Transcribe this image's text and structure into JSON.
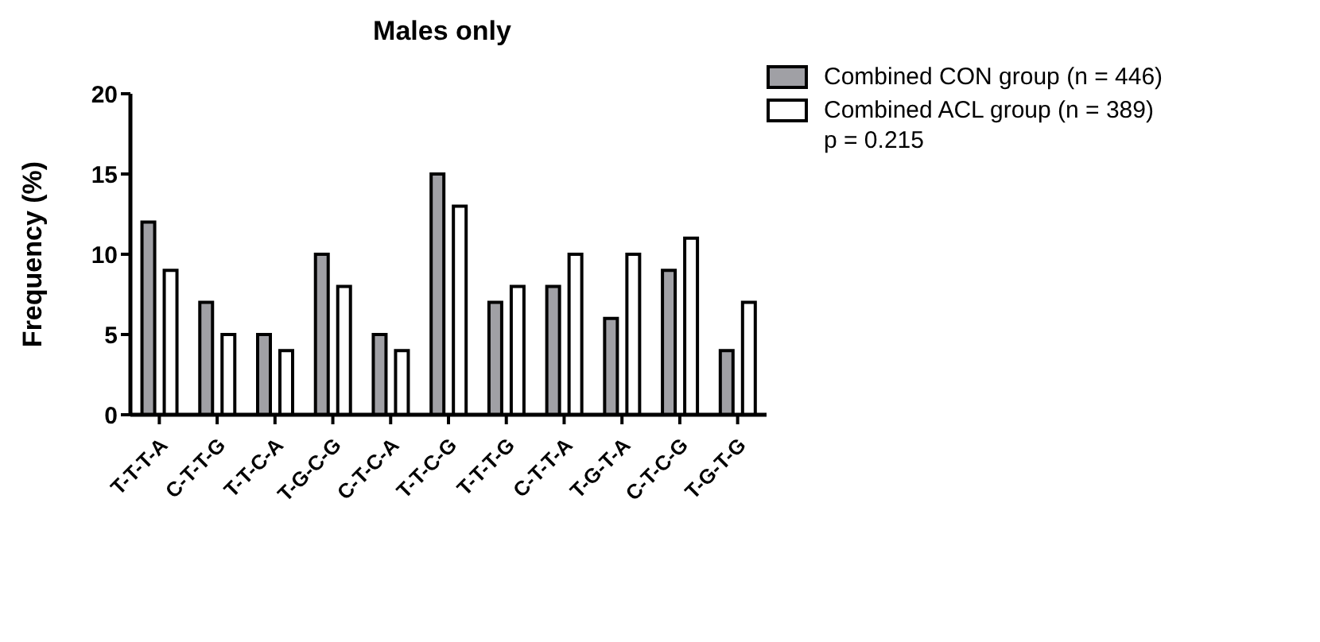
{
  "chart_data": {
    "type": "bar",
    "title": "Males only",
    "ylabel": "Frequency (%)",
    "categories": [
      "T-T-T-A",
      "C-T-T-G",
      "T-T-C-A",
      "T-G-C-G",
      "C-T-C-A",
      "T-T-C-G",
      "T-T-T-G",
      "C-T-T-A",
      "T-G-T-A",
      "C-T-C-G",
      "T-G-T-G"
    ],
    "series": [
      {
        "name": "Combined CON group (n = 446)",
        "color": "#a0a0a5",
        "values": [
          12,
          7,
          5,
          10,
          5,
          15,
          7,
          8,
          6,
          9,
          4
        ]
      },
      {
        "name": "Combined ACL group (n = 389)",
        "color": "#ffffff",
        "values": [
          9,
          5,
          4,
          8,
          4,
          13,
          8,
          10,
          10,
          11,
          7
        ]
      }
    ],
    "ylim": [
      0,
      20
    ],
    "yticks": [
      0,
      5,
      10,
      15,
      20
    ],
    "grid": false,
    "legend": "top right",
    "annotations": [
      "p = 0.215"
    ]
  }
}
